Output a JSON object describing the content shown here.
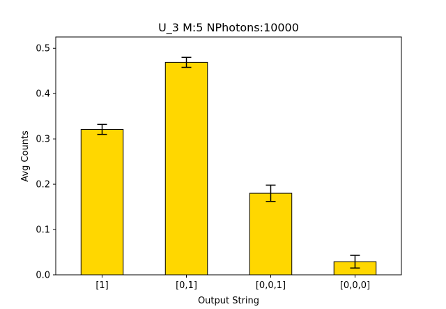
{
  "chart_data": {
    "type": "bar",
    "title": "U_3 M:5 NPhotons:10000",
    "xlabel": "Output String",
    "ylabel": "Avg Counts",
    "categories": [
      "[1]",
      "[0,1]",
      "[0,0,1]",
      "[0,0,0]"
    ],
    "values": [
      0.321,
      0.469,
      0.18,
      0.029
    ],
    "errors": [
      0.011,
      0.011,
      0.018,
      0.014
    ],
    "ylim": [
      0,
      0.525
    ],
    "yticks": [
      0.0,
      0.1,
      0.2,
      0.3,
      0.4,
      0.5
    ],
    "bar_color": "#FFD700",
    "edge_color": "#000000",
    "grid": false,
    "legend": "none"
  }
}
